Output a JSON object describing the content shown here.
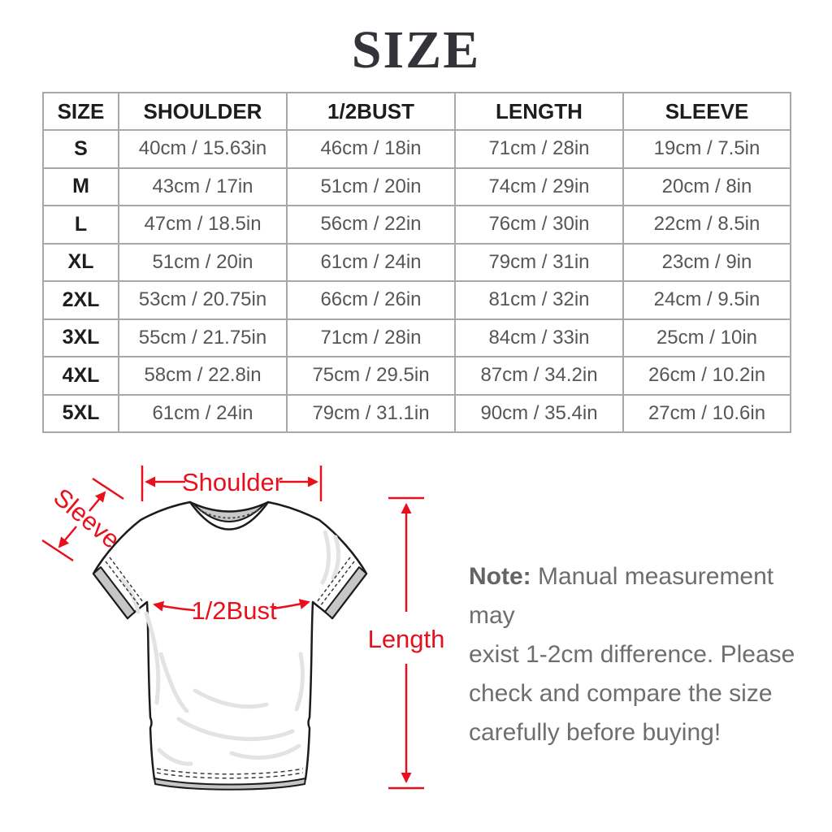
{
  "title": "SIZE",
  "table": {
    "headers": [
      "SIZE",
      "SHOULDER",
      "1/2BUST",
      "LENGTH",
      "SLEEVE"
    ],
    "rows": [
      [
        "S",
        "40cm / 15.63in",
        "46cm / 18in",
        "71cm / 28in",
        "19cm / 7.5in"
      ],
      [
        "M",
        "43cm / 17in",
        "51cm / 20in",
        "74cm / 29in",
        "20cm / 8in"
      ],
      [
        "L",
        "47cm / 18.5in",
        "56cm / 22in",
        "76cm / 30in",
        "22cm / 8.5in"
      ],
      [
        "XL",
        "51cm / 20in",
        "61cm / 24in",
        "79cm / 31in",
        "23cm / 9in"
      ],
      [
        "2XL",
        "53cm / 20.75in",
        "66cm / 26in",
        "81cm / 32in",
        "24cm / 9.5in"
      ],
      [
        "3XL",
        "55cm / 21.75in",
        "71cm / 28in",
        "84cm / 33in",
        "25cm / 10in"
      ],
      [
        "4XL",
        "58cm / 22.8in",
        "75cm / 29.5in",
        "87cm / 34.2in",
        "26cm / 10.2in"
      ],
      [
        "5XL",
        "61cm / 24in",
        "79cm / 31.1in",
        "90cm / 35.4in",
        "27cm / 10.6in"
      ]
    ]
  },
  "diagram": {
    "labels": {
      "shoulder": "Shoulder",
      "sleeve": "Sleeve",
      "bust": "1/2Bust",
      "length": "Length"
    },
    "accent_color": "#e8101c"
  },
  "note": {
    "label": "Note:",
    "lines": [
      " Manual measurement may",
      "exist 1-2cm difference. Please",
      "check and compare the size",
      "carefully before buying!"
    ]
  }
}
